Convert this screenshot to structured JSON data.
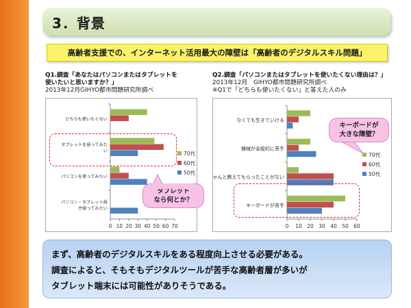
{
  "slide": {
    "title": "3．背景",
    "headline": "高齢者支援での、インターネット活用最大の障壁は「高齢者のデジタルスキル問題」",
    "bottom_lines": [
      "まず、高齢者のデジタルスキルをある程度向上させる必要がある。",
      "調査によると、そもそもデジタルツールが苦手な高齢者層が多いが",
      "タブレット端末には可能性がありそうである。"
    ]
  },
  "q1": {
    "title_line1": "Q1.調査「あなたはパソコンまたはタブレットを",
    "title_line2": "使いたいと思いますか？」",
    "source": "2013年12月GIHYO都市問題研究所調べ",
    "callout_line1": "タブレット",
    "callout_line2": "なら何とか？"
  },
  "q2": {
    "title": "Q2.調査「パソコンまたはタブレットを使いたくない理由は？」",
    "source": "2013年12月　GIHYO都市問題研究所調べ",
    "note": "※Q1で「どちらも使いたくない」と答えた人のみ",
    "callout_line1": "キーボードが",
    "callout_line2": "大きな障壁？"
  },
  "colors": {
    "s70": "#9bbb59",
    "s60": "#c0504d",
    "s50": "#4f81bd"
  },
  "chart_data": [
    {
      "type": "bar",
      "orientation": "horizontal",
      "categories": [
        "どちらも使いたくない",
        "タブレットを使ってみたい",
        "パソコンを使ってみたい",
        "パソコン・タブレット両方使ってみたい"
      ],
      "series": [
        {
          "name": "70代",
          "values": [
            40,
            48,
            10,
            0
          ]
        },
        {
          "name": "60代",
          "values": [
            20,
            58,
            20,
            0
          ]
        },
        {
          "name": "50代",
          "values": [
            0,
            30,
            40,
            30
          ]
        }
      ],
      "xlim": [
        0,
        70
      ],
      "xticks": [
        "0",
        "10",
        "20",
        "30",
        "40",
        "50",
        "60",
        "70"
      ],
      "legend": "right"
    },
    {
      "type": "bar",
      "orientation": "horizontal",
      "categories": [
        "なくても生きていける",
        "機械が全般的に苦手",
        "ちゃんと教えてもらったことがない",
        "キーボードが苦手"
      ],
      "series": [
        {
          "name": "70代",
          "values": [
            20,
            20,
            10,
            50
          ]
        },
        {
          "name": "60代",
          "values": [
            10,
            10,
            40,
            40
          ]
        },
        {
          "name": "50代",
          "values": [
            5,
            25,
            40,
            30
          ]
        }
      ],
      "xlim": [
        0,
        60
      ],
      "xticks": [
        "0",
        "10",
        "20",
        "30",
        "40",
        "50",
        "60"
      ],
      "legend": "right"
    }
  ]
}
